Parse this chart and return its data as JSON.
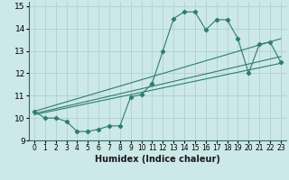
{
  "xlabel": "Humidex (Indice chaleur)",
  "ylabel": "",
  "xlim": [
    -0.5,
    23.5
  ],
  "ylim": [
    9,
    15.2
  ],
  "xticks": [
    0,
    1,
    2,
    3,
    4,
    5,
    6,
    7,
    8,
    9,
    10,
    11,
    12,
    13,
    14,
    15,
    16,
    17,
    18,
    19,
    20,
    21,
    22,
    23
  ],
  "yticks": [
    9,
    10,
    11,
    12,
    13,
    14,
    15
  ],
  "bg_color": "#cce8e8",
  "grid_color": "#aacccc",
  "line_color": "#2e7d6e",
  "curve1_x": [
    0,
    1,
    2,
    3,
    4,
    5,
    6,
    7,
    8,
    9,
    10,
    11,
    12,
    13,
    14,
    15,
    16,
    17,
    18,
    19,
    20,
    21,
    22,
    23
  ],
  "curve1_y": [
    10.3,
    10.0,
    10.0,
    9.85,
    9.4,
    9.4,
    9.5,
    9.65,
    9.65,
    10.95,
    11.05,
    11.55,
    13.0,
    14.45,
    14.75,
    14.75,
    13.95,
    14.4,
    14.4,
    13.55,
    12.0,
    13.3,
    13.4,
    12.5
  ],
  "line1_x": [
    0,
    23
  ],
  "line1_y": [
    10.15,
    12.45
  ],
  "line2_x": [
    0,
    23
  ],
  "line2_y": [
    10.3,
    13.55
  ],
  "line3_x": [
    0,
    23
  ],
  "line3_y": [
    10.2,
    12.75
  ]
}
